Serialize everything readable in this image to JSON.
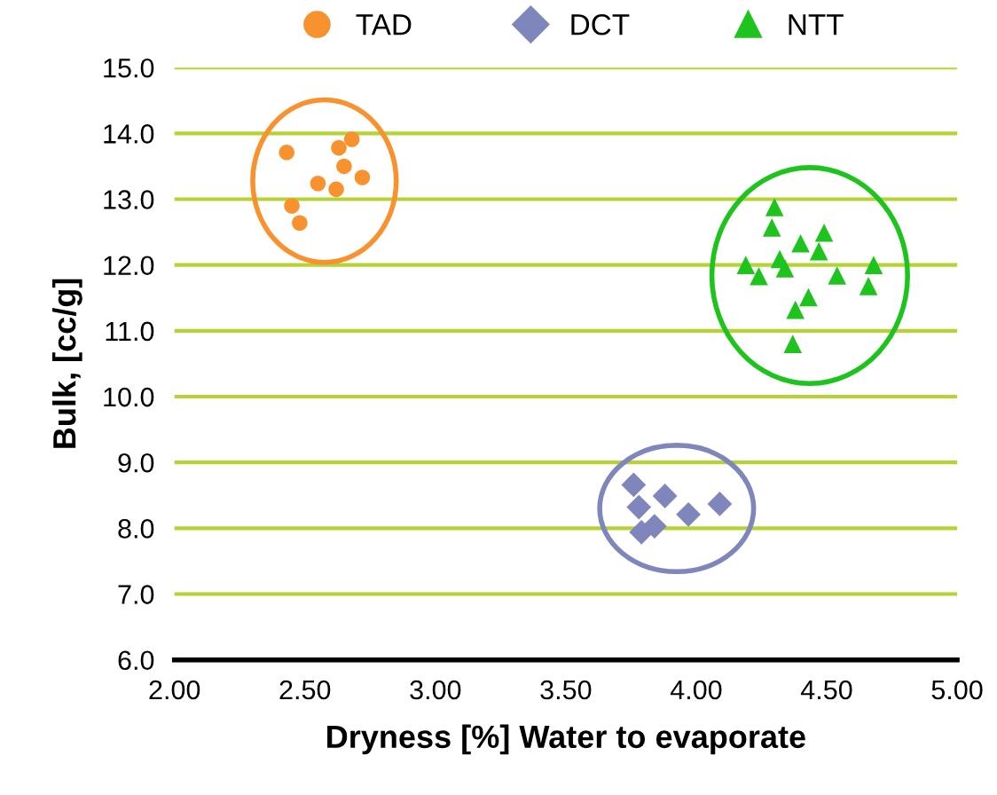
{
  "chart_data": {
    "type": "scatter",
    "xlabel": "Dryness [%] Water to evaporate",
    "ylabel": "Bulk, [cc/g]",
    "series": [
      {
        "name": "TAD",
        "color": "#f7922e",
        "marker": "circle",
        "x": [
          2.43,
          2.63,
          2.68,
          2.65,
          2.72,
          2.55,
          2.62,
          2.45,
          2.48
        ],
        "values": [
          13.71,
          13.78,
          13.91,
          13.5,
          13.33,
          13.24,
          13.15,
          12.9,
          12.64
        ]
      },
      {
        "name": "DCT",
        "color": "#7f86bb",
        "marker": "diamond",
        "x": [
          3.76,
          3.88,
          3.78,
          4.09,
          3.97,
          3.84,
          3.79
        ],
        "values": [
          8.66,
          8.49,
          8.32,
          8.37,
          8.21,
          8.03,
          7.94
        ]
      },
      {
        "name": "NTT",
        "color": "#1ec31e",
        "marker": "triangle",
        "x": [
          4.3,
          4.29,
          4.49,
          4.4,
          4.47,
          4.32,
          4.19,
          4.34,
          4.68,
          4.24,
          4.54,
          4.66,
          4.43,
          4.38,
          4.37
        ],
        "values": [
          12.88,
          12.57,
          12.49,
          12.33,
          12.21,
          12.09,
          12.0,
          11.95,
          12.0,
          11.83,
          11.84,
          11.68,
          11.51,
          11.32,
          10.8
        ]
      }
    ],
    "xlim": [
      2.0,
      5.0
    ],
    "xticks": [
      {
        "value": 2.0,
        "label": "2.00"
      },
      {
        "value": 2.5,
        "label": "2.50"
      },
      {
        "value": 3.0,
        "label": "3.00"
      },
      {
        "value": 3.5,
        "label": "3.50"
      },
      {
        "value": 4.0,
        "label": "4.00"
      },
      {
        "value": 4.5,
        "label": "4.50"
      },
      {
        "value": 5.0,
        "label": "5.00"
      }
    ],
    "ylim": [
      6.0,
      15.0
    ],
    "yticks": [
      {
        "value": 6,
        "label": "6.0"
      },
      {
        "value": 7,
        "label": "7.0"
      },
      {
        "value": 8,
        "label": "8.0"
      },
      {
        "value": 9,
        "label": "9.0"
      },
      {
        "value": 10,
        "label": "10.0"
      },
      {
        "value": 11,
        "label": "11.0"
      },
      {
        "value": 12,
        "label": "12.0"
      },
      {
        "value": 13,
        "label": "13.0"
      },
      {
        "value": 14,
        "label": "14.0"
      },
      {
        "value": 15,
        "label": "15.0"
      }
    ],
    "grid": "y",
    "legend": "top"
  }
}
